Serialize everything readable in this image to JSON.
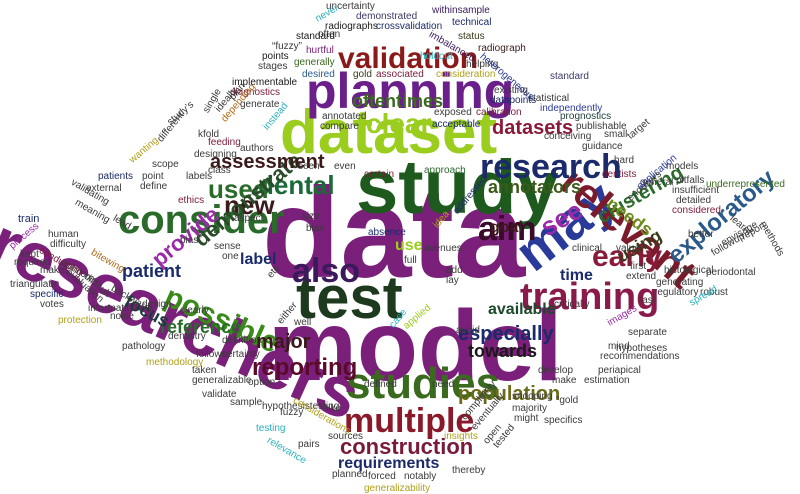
{
  "words": [
    {
      "text": "data",
      "color": "#7a1f7a"
    },
    {
      "text": "model",
      "color": "#7a1f7a"
    },
    {
      "text": "study",
      "color": "#1e5a1e"
    },
    {
      "text": "researchers",
      "color": "#7a1f7a"
    },
    {
      "text": "dataset",
      "color": "#9acd1e"
    },
    {
      "text": "test",
      "color": "#1e3a1e"
    },
    {
      "text": "planning",
      "color": "#6a1f8a"
    },
    {
      "text": "may",
      "color": "#2a3a9a"
    },
    {
      "text": "studies",
      "color": "#3a6a1e"
    },
    {
      "text": "relevant",
      "color": "#7a1a2a"
    },
    {
      "text": "training",
      "color": "#8a1a4a"
    },
    {
      "text": "consider",
      "color": "#2a6a2a"
    },
    {
      "text": "multiple",
      "color": "#8a1a2a"
    },
    {
      "text": "validation",
      "color": "#8a1a1a"
    },
    {
      "text": "research",
      "color": "#1a2a6a"
    },
    {
      "text": "possible",
      "color": "#3a8a1a"
    },
    {
      "text": "also",
      "color": "#3a1a5a"
    },
    {
      "text": "new",
      "color": "#3a1a1a"
    },
    {
      "text": "dental",
      "color": "#1a6a3a"
    },
    {
      "text": "early",
      "color": "#8a1a3a"
    },
    {
      "text": "clear",
      "color": "#9acd1e"
    },
    {
      "text": "used",
      "color": "#2a6a2a"
    },
    {
      "text": "aim",
      "color": "#3a0a2a"
    },
    {
      "text": "see",
      "color": "#9a2aaa"
    },
    {
      "text": "exploratory",
      "color": "#2a5a8a"
    },
    {
      "text": "construction",
      "color": "#7a1a3a"
    },
    {
      "text": "reporting",
      "color": "#5a0a2a"
    },
    {
      "text": "population",
      "color": "#6a6a1a"
    },
    {
      "text": "requirements",
      "color": "#1a2a6a"
    },
    {
      "text": "towards",
      "color": "#1a1a1a"
    },
    {
      "text": "especially",
      "color": "#1a2a6a"
    },
    {
      "text": "reference",
      "color": "#2a6a2a"
    },
    {
      "text": "demonstrate",
      "color": "#2a4a2a"
    },
    {
      "text": "provide",
      "color": "#9a2aaa"
    },
    {
      "text": "annotators",
      "color": "#3a5a1a"
    },
    {
      "text": "datasets",
      "color": "#8a1a3a"
    },
    {
      "text": "clustering",
      "color": "#2a6a2a"
    },
    {
      "text": "assessment",
      "color": "#3a1a1a"
    },
    {
      "text": "oftentimes",
      "color": "#3a6a1e"
    },
    {
      "text": "patient",
      "color": "#1a2a6a"
    },
    {
      "text": "focus",
      "color": "#1a3a3a"
    },
    {
      "text": "major",
      "color": "#3a1a1a"
    },
    {
      "text": "needs",
      "color": "#6a8a1a"
    },
    {
      "text": "using",
      "color": "#3a3a1a"
    },
    {
      "text": "available",
      "color": "#1a4a2a"
    },
    {
      "text": "time",
      "color": "#1a2a6a"
    },
    {
      "text": "goal",
      "color": "#3a1a1a"
    },
    {
      "text": "label",
      "color": "#1a2a6a"
    },
    {
      "text": "use",
      "color": "#9acd1e"
    },
    {
      "text": "uncertainty",
      "color": "#3a3a3a"
    },
    {
      "text": "demonstrated",
      "color": "#3a3a6a"
    },
    {
      "text": "withinsample",
      "color": "#3a1a5a"
    },
    {
      "text": "radiographs",
      "color": "#1a1a1a"
    },
    {
      "text": "crossvalidation",
      "color": "#1a2a6a"
    },
    {
      "text": "technical",
      "color": "#1a2a6a"
    },
    {
      "text": "never",
      "color": "#2ab0c0"
    },
    {
      "text": "often",
      "color": "#3a3a3a"
    },
    {
      "text": "imbalanced",
      "color": "#3a1a5a"
    },
    {
      "text": "status",
      "color": "#3a3a1a"
    },
    {
      "text": "standard",
      "color": "#1a1a1a"
    },
    {
      "text": "“fuzzy”",
      "color": "#3a3a3a"
    },
    {
      "text": "points",
      "color": "#1a1a1a"
    },
    {
      "text": "hurtful",
      "color": "#7a1f7a"
    },
    {
      "text": "holdout",
      "color": "#2ab0c0"
    },
    {
      "text": "radiograph",
      "color": "#3a1a1a"
    },
    {
      "text": "generally",
      "color": "#3a6a1e"
    },
    {
      "text": "stages",
      "color": "#3a3a3a"
    },
    {
      "text": "helping",
      "color": "#3a3a3a"
    },
    {
      "text": "desired",
      "color": "#2a5a8a"
    },
    {
      "text": "implementable",
      "color": "#1a1a1a"
    },
    {
      "text": "gold",
      "color": "#3a3a1a"
    },
    {
      "text": "associated",
      "color": "#7a1a3a"
    },
    {
      "text": "consideration",
      "color": "#b0a01a"
    },
    {
      "text": "heterogeneous",
      "color": "#2a3a9a"
    },
    {
      "text": "standard",
      "color": "#3a3a6a"
    },
    {
      "text": "statistical",
      "color": "#3a3a3a"
    },
    {
      "text": "existing",
      "color": "#3a3a3a"
    },
    {
      "text": "datapoints",
      "color": "#1a2a6a"
    },
    {
      "text": "independently",
      "color": "#2a3a9a"
    },
    {
      "text": "prognostics",
      "color": "#1a3a3a"
    },
    {
      "text": "diagnostics",
      "color": "#7a1a3a"
    },
    {
      "text": "annotated",
      "color": "#3a3a3a"
    },
    {
      "text": "exposed",
      "color": "#3a3a3a"
    },
    {
      "text": "calibration",
      "color": "#7a1a3a"
    },
    {
      "text": "publishable",
      "color": "#3a3a3a"
    },
    {
      "text": "compare",
      "color": "#3a3a3a"
    },
    {
      "text": "acceptable",
      "color": "#1a2a6a"
    },
    {
      "text": "conceiving",
      "color": "#3a3a3a"
    },
    {
      "text": "small",
      "color": "#3a3a3a"
    },
    {
      "text": "guidance",
      "color": "#3a3a3a"
    },
    {
      "text": "ideally",
      "color": "#3a3a3a"
    },
    {
      "text": "single",
      "color": "#3a3a3a"
    },
    {
      "text": "plan",
      "color": "#3a3a3a"
    },
    {
      "text": "generate",
      "color": "#3a3a3a"
    },
    {
      "text": "study’s",
      "color": "#3a3a3a"
    },
    {
      "text": "kfold",
      "color": "#3a3a3a"
    },
    {
      "text": "depending",
      "color": "#b06a1a"
    },
    {
      "text": "feeding",
      "color": "#7a1a3a"
    },
    {
      "text": "designing",
      "color": "#3a3a3a"
    },
    {
      "text": "authors",
      "color": "#3a3a3a"
    },
    {
      "text": "instead",
      "color": "#2ab0c0"
    },
    {
      "text": "approach",
      "color": "#2a6a2a"
    },
    {
      "text": "hard",
      "color": "#3a3a3a"
    },
    {
      "text": "models",
      "color": "#3a3a3a"
    },
    {
      "text": "target",
      "color": "#3a3a3a"
    },
    {
      "text": "wanting",
      "color": "#b0a01a"
    },
    {
      "text": "scope",
      "color": "#3a3a3a"
    },
    {
      "text": "point",
      "color": "#3a3a3a"
    },
    {
      "text": "different",
      "color": "#3a3a3a"
    },
    {
      "text": "patients",
      "color": "#1a2a6a"
    },
    {
      "text": "external",
      "color": "#3a3a3a"
    },
    {
      "text": "define",
      "color": "#3a3a3a"
    },
    {
      "text": "labels",
      "color": "#3a3a3a"
    },
    {
      "text": "class",
      "color": "#3a3a3a"
    },
    {
      "text": "seen",
      "color": "#3a3a3a"
    },
    {
      "text": "even",
      "color": "#3a3a3a"
    },
    {
      "text": "certain",
      "color": "#7a1a3a"
    },
    {
      "text": "dentists",
      "color": "#7a1a3a"
    },
    {
      "text": "general",
      "color": "#3a3a3a"
    },
    {
      "text": "pitfalls",
      "color": "#3a3a3a"
    },
    {
      "text": "insufficient",
      "color": "#3a3a3a"
    },
    {
      "text": "detailed",
      "color": "#3a3a3a"
    },
    {
      "text": "considered",
      "color": "#7a1a3a"
    },
    {
      "text": "underrepresented",
      "color": "#3a6a1e"
    },
    {
      "text": "validating",
      "color": "#3a3a3a"
    },
    {
      "text": "meaning",
      "color": "#3a3a3a"
    },
    {
      "text": "ethics",
      "color": "#7a1a3a"
    },
    {
      "text": "application",
      "color": "#2a3a9a"
    },
    {
      "text": "endusers",
      "color": "#3a3a3a"
    },
    {
      "text": "train",
      "color": "#1a2a6a"
    },
    {
      "text": "lead",
      "color": "#3a3a3a"
    },
    {
      "text": "bias”",
      "color": "#3a3a3a"
    },
    {
      "text": "aspect",
      "color": "#3a3a3a"
    },
    {
      "text": "size",
      "color": "#3a3a3a"
    },
    {
      "text": "bias",
      "color": "#3a3a3a"
    },
    {
      "text": "absence",
      "color": "#1a2a6a"
    },
    {
      "text": "idea",
      "color": "#b0a01a"
    },
    {
      "text": "addressed",
      "color": "#1a2a6a"
    },
    {
      "text": "better",
      "color": "#3a3a3a"
    },
    {
      "text": "learnt",
      "color": "#3a3a3a"
    },
    {
      "text": "report",
      "color": "#3a3a3a"
    },
    {
      "text": "envisage",
      "color": "#3a3a3a"
    },
    {
      "text": "followup",
      "color": "#3a3a3a"
    },
    {
      "text": "methods",
      "color": "#3a3a3a"
    },
    {
      "text": "process",
      "color": "#9a2aaa"
    },
    {
      "text": "human",
      "color": "#3a3a3a"
    },
    {
      "text": "difficulty",
      "color": "#3a3a3a"
    },
    {
      "text": "kept",
      "color": "#3a3a3a"
    },
    {
      "text": "conducting",
      "color": "#7a1a3a"
    },
    {
      "text": "required",
      "color": "#3a3a3a"
    },
    {
      "text": "makes",
      "color": "#3a3a3a"
    },
    {
      "text": "bitewing",
      "color": "#b06a1a"
    },
    {
      "text": "one",
      "color": "#3a3a3a"
    },
    {
      "text": "sense",
      "color": "#3a3a3a"
    },
    {
      "text": "etc",
      "color": "#3a3a3a"
    },
    {
      "text": "full",
      "color": "#3a3a3a"
    },
    {
      "text": "avenues",
      "color": "#3a3a3a"
    },
    {
      "text": "add",
      "color": "#3a3a3a"
    },
    {
      "text": "lay",
      "color": "#3a3a3a"
    },
    {
      "text": "clinical",
      "color": "#3a3a3a"
    },
    {
      "text": "value",
      "color": "#3a3a3a"
    },
    {
      "text": "first",
      "color": "#3a3a3a"
    },
    {
      "text": "histological",
      "color": "#3a3a3a"
    },
    {
      "text": "periodontal",
      "color": "#3a3a3a"
    },
    {
      "text": "extend",
      "color": "#3a3a3a"
    },
    {
      "text": "generating",
      "color": "#3a3a3a"
    },
    {
      "text": "robust",
      "color": "#3a3a3a"
    },
    {
      "text": "regulatory",
      "color": "#3a3a3a"
    },
    {
      "text": "last",
      "color": "#3a3a3a"
    },
    {
      "text": "spread",
      "color": "#2ab0c0"
    },
    {
      "text": "triangulate",
      "color": "#3a3a3a"
    },
    {
      "text": "outmore",
      "color": "#3a3a3a"
    },
    {
      "text": "evaluation",
      "color": "#3a3a3a"
    },
    {
      "text": "specific",
      "color": "#1a2a6a"
    },
    {
      "text": "difficult",
      "color": "#3a3a3a"
    },
    {
      "text": "backwards",
      "color": "#3a3a3a"
    },
    {
      "text": "votes",
      "color": "#3a3a3a"
    },
    {
      "text": "information",
      "color": "#3a3a3a"
    },
    {
      "text": "protection",
      "color": "#b0a01a"
    },
    {
      "text": "noise",
      "color": "#3a3a3a"
    },
    {
      "text": "design",
      "color": "#3a3a3a"
    },
    {
      "text": "clearly",
      "color": "#3a3a3a"
    },
    {
      "text": "dentistry",
      "color": "#3a3a3a"
    },
    {
      "text": "pathology",
      "color": "#3a3a3a"
    },
    {
      "text": "certainty",
      "color": "#3a3a3a"
    },
    {
      "text": "follows",
      "color": "#3a3a3a"
    },
    {
      "text": "either",
      "color": "#3a3a3a"
    },
    {
      "text": "well",
      "color": "#3a3a3a"
    },
    {
      "text": "case",
      "color": "#2ab0c0"
    },
    {
      "text": "applied",
      "color": "#9acd1e"
    },
    {
      "text": "avoid",
      "color": "#3a3a3a"
    },
    {
      "text": "critically",
      "color": "#3a3a3a"
    },
    {
      "text": "images",
      "color": "#9a2aaa"
    },
    {
      "text": "separate",
      "color": "#3a3a3a"
    },
    {
      "text": "mind",
      "color": "#3a3a3a"
    },
    {
      "text": "hypotheses",
      "color": "#3a3a3a"
    },
    {
      "text": "recommendations",
      "color": "#3a3a3a"
    },
    {
      "text": "methodology",
      "color": "#b0a01a"
    },
    {
      "text": "definition",
      "color": "#3a3a3a"
    },
    {
      "text": "taken",
      "color": "#3a3a3a"
    },
    {
      "text": "generalizable",
      "color": "#3a3a3a"
    },
    {
      "text": "option",
      "color": "#3a3a3a"
    },
    {
      "text": "validate",
      "color": "#3a3a3a"
    },
    {
      "text": "sample",
      "color": "#3a3a3a"
    },
    {
      "text": "hypothesistesting",
      "color": "#3a3a3a"
    },
    {
      "text": "fuzzy",
      "color": "#3a3a3a"
    },
    {
      "text": "considerations",
      "color": "#b0a01a"
    },
    {
      "text": "like",
      "color": "#3a3a3a"
    },
    {
      "text": "defined",
      "color": "#3a3a3a"
    },
    {
      "text": "need",
      "color": "#3a3a3a"
    },
    {
      "text": "develop",
      "color": "#3a3a3a"
    },
    {
      "text": "periapical",
      "color": "#3a3a3a"
    },
    {
      "text": "make",
      "color": "#3a3a3a"
    },
    {
      "text": "estimation",
      "color": "#3a3a3a"
    },
    {
      "text": "snooping",
      "color": "#3a3a3a"
    },
    {
      "text": "majority",
      "color": "#3a3a3a"
    },
    {
      "text": "“gold",
      "color": "#3a3a3a"
    },
    {
      "text": "completely",
      "color": "#3a3a3a"
    },
    {
      "text": "eventually",
      "color": "#3a3a3a"
    },
    {
      "text": "might",
      "color": "#3a3a3a"
    },
    {
      "text": "specifics",
      "color": "#3a3a3a"
    },
    {
      "text": "sources",
      "color": "#3a3a3a"
    },
    {
      "text": "testing",
      "color": "#2ab0c0"
    },
    {
      "text": "relevance",
      "color": "#2ab0c0"
    },
    {
      "text": "pairs",
      "color": "#3a3a3a"
    },
    {
      "text": "insights",
      "color": "#b0a01a"
    },
    {
      "text": "open",
      "color": "#3a3a3a"
    },
    {
      "text": "tested",
      "color": "#3a3a3a"
    },
    {
      "text": "planned",
      "color": "#3a3a3a"
    },
    {
      "text": "forced",
      "color": "#3a3a3a"
    },
    {
      "text": "notably",
      "color": "#3a3a3a"
    },
    {
      "text": "thereby",
      "color": "#3a3a3a"
    },
    {
      "text": "generalizability",
      "color": "#b0a01a"
    }
  ]
}
